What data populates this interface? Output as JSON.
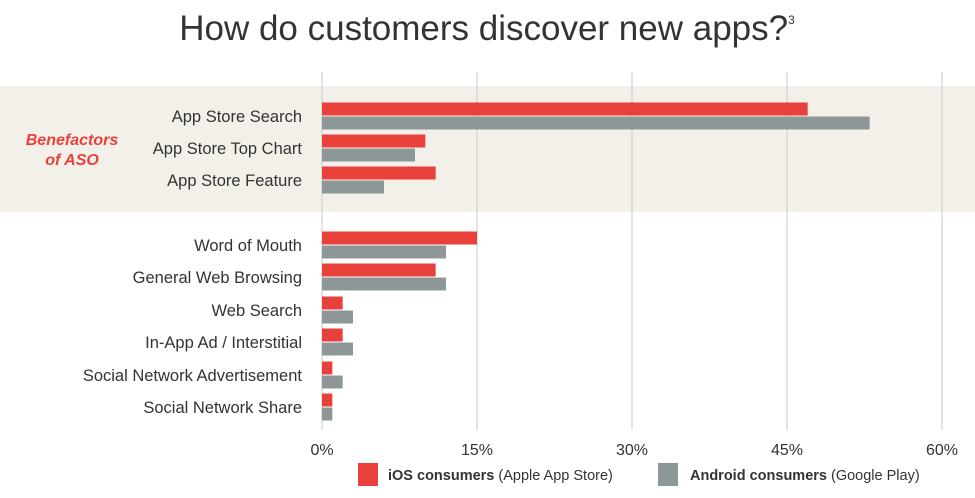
{
  "chart_data": {
    "type": "bar",
    "orientation": "horizontal",
    "title": "How do customers discover new apps?",
    "title_superscript": "3",
    "categories": [
      "App Store Search",
      "App Store Top Chart",
      "App Store Feature",
      "Word of Mouth",
      "General Web Browsing",
      "Web Search",
      "In-App Ad / Interstitial",
      "Social Network Advertisement",
      "Social Network Share"
    ],
    "series": [
      {
        "name": "iOS consumers",
        "name_suffix": "(Apple App Store)",
        "color": "#e8403a",
        "values": [
          47,
          10,
          11,
          15,
          11,
          2,
          2,
          1,
          1
        ]
      },
      {
        "name": "Android consumers",
        "name_suffix": "(Google Play)",
        "color": "#8d9797",
        "values": [
          53,
          9,
          6,
          12,
          12,
          3,
          3,
          2,
          1
        ]
      }
    ],
    "xlim": [
      0,
      60
    ],
    "ticks": [
      0,
      15,
      30,
      45,
      60
    ],
    "tick_labels": [
      "0%",
      "15%",
      "30%",
      "45%",
      "60%"
    ],
    "grid": true,
    "legend_position": "bottom",
    "highlight_group": {
      "label_line1": "Benefactors",
      "label_line2": "of ASO",
      "categories": [
        "App Store Search",
        "App Store Top Chart",
        "App Store Feature"
      ],
      "label_color": "#e8403a",
      "band_color": "#f3f0ea"
    }
  }
}
